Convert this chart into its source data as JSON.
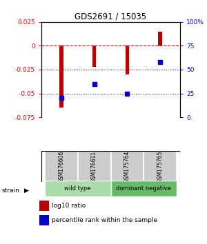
{
  "title": "GDS2691 / 15035",
  "samples": [
    "GSM176606",
    "GSM176611",
    "GSM175764",
    "GSM175765"
  ],
  "log10_ratio": [
    -0.065,
    -0.022,
    -0.03,
    0.015
  ],
  "percentile_rank": [
    20,
    35,
    25,
    58
  ],
  "ylim_left": [
    -0.075,
    0.025
  ],
  "ylim_right": [
    0,
    100
  ],
  "bar_color": "#bb0000",
  "dot_color": "#0000cc",
  "hline0_color": "#cc0000",
  "hline_dotted_color": "#000000",
  "groups": [
    {
      "label": "wild type",
      "samples": [
        0,
        1
      ],
      "color": "#aaddaa"
    },
    {
      "label": "dominant negative",
      "samples": [
        2,
        3
      ],
      "color": "#66bb66"
    }
  ],
  "legend_ratio_label": "log10 ratio",
  "legend_pct_label": "percentile rank within the sample",
  "strain_label": "strain",
  "yticks_left": [
    -0.075,
    -0.05,
    -0.025,
    0,
    0.025
  ],
  "yticks_right": [
    0,
    25,
    50,
    75,
    100
  ],
  "dotted_hlines": [
    -0.025,
    -0.05
  ],
  "bar_width": 0.12
}
